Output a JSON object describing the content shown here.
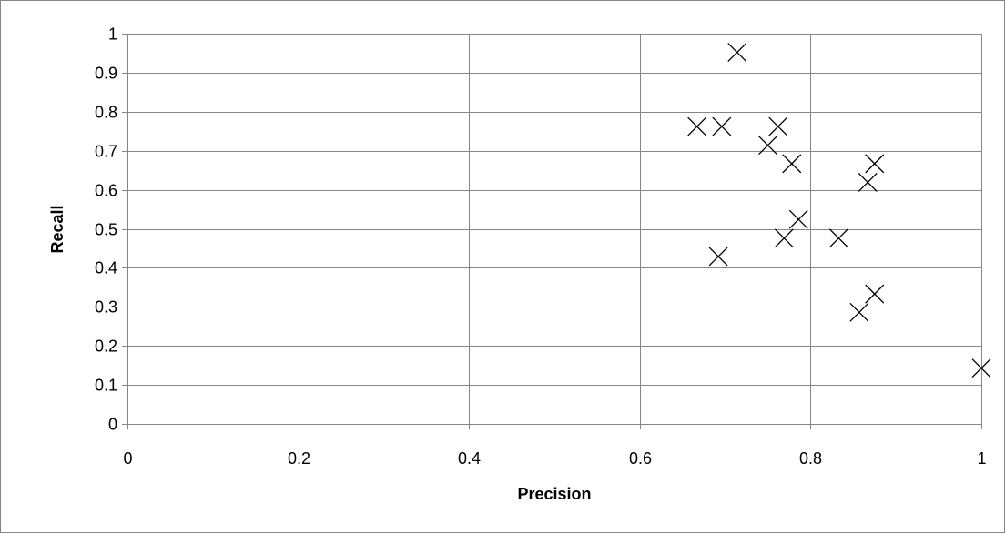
{
  "chart_data": {
    "type": "scatter",
    "title": "",
    "xlabel": "Precision",
    "ylabel": "Recall",
    "xlim": [
      0,
      1
    ],
    "ylim": [
      0,
      1
    ],
    "x_ticks": [
      "0",
      "0.2",
      "0.4",
      "0.6",
      "0.8",
      "1"
    ],
    "y_ticks": [
      "0",
      "0.1",
      "0.2",
      "0.3",
      "0.4",
      "0.5",
      "0.6",
      "0.7",
      "0.8",
      "0.9",
      "1"
    ],
    "grid": true,
    "marker": "x",
    "series": [
      {
        "points": [
          {
            "x": 0.714,
            "y": 0.952
          },
          {
            "x": 0.667,
            "y": 0.762
          },
          {
            "x": 0.696,
            "y": 0.762
          },
          {
            "x": 0.762,
            "y": 0.762
          },
          {
            "x": 0.75,
            "y": 0.714
          },
          {
            "x": 0.778,
            "y": 0.667
          },
          {
            "x": 0.875,
            "y": 0.667
          },
          {
            "x": 0.867,
            "y": 0.619
          },
          {
            "x": 0.786,
            "y": 0.524
          },
          {
            "x": 0.769,
            "y": 0.476
          },
          {
            "x": 0.833,
            "y": 0.476
          },
          {
            "x": 0.692,
            "y": 0.429
          },
          {
            "x": 0.875,
            "y": 0.333
          },
          {
            "x": 0.857,
            "y": 0.286
          },
          {
            "x": 1.0,
            "y": 0.143
          }
        ]
      }
    ]
  }
}
